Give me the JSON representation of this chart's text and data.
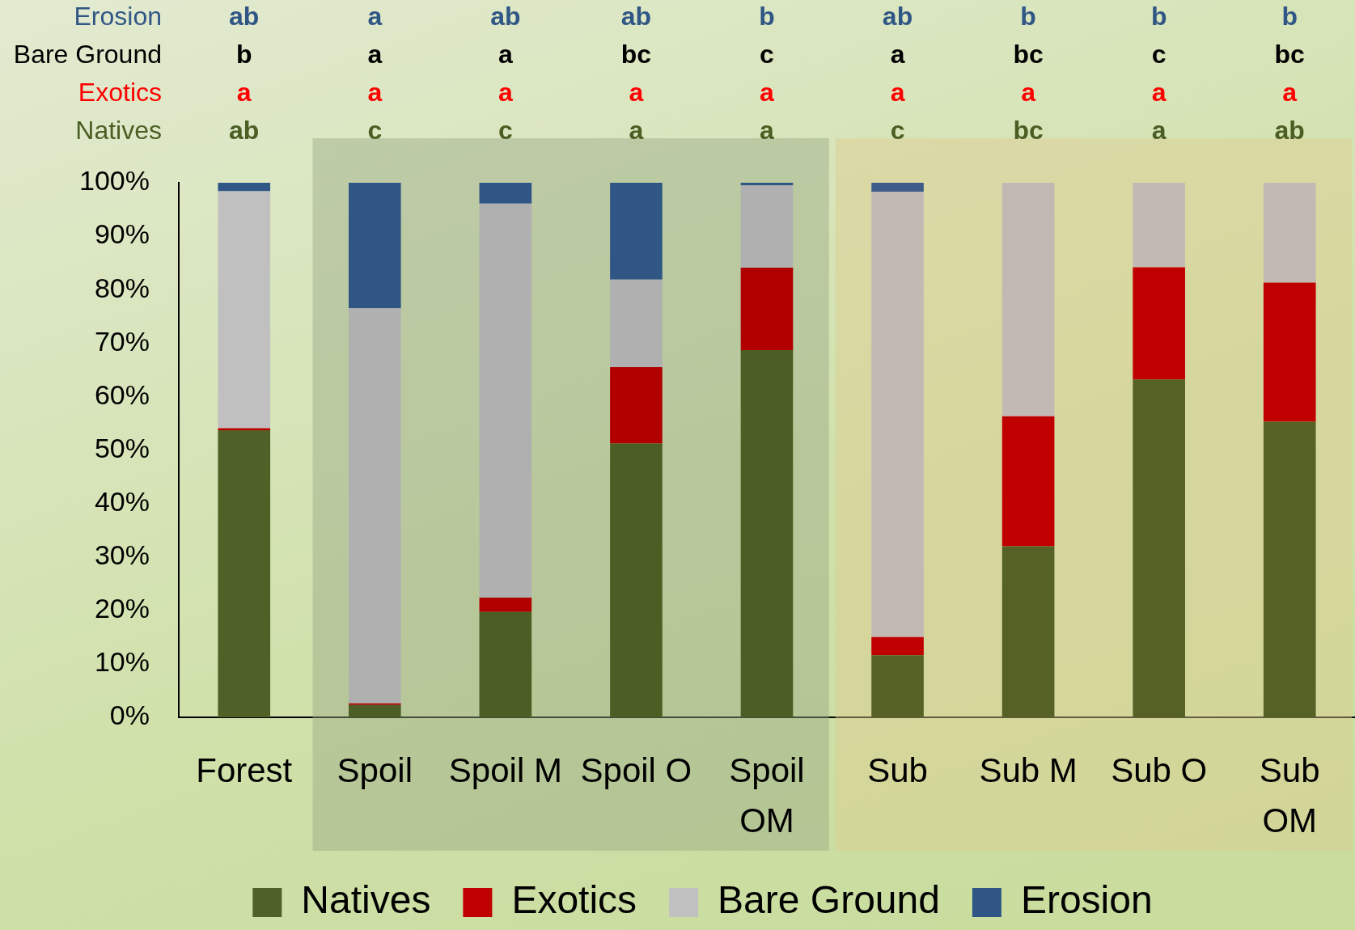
{
  "chart_data": {
    "type": "bar",
    "stacked": true,
    "categories": [
      "Forest",
      "Spoil",
      "Spoil M",
      "Spoil O",
      "Spoil OM",
      "Sub",
      "Sub M",
      "Sub O",
      "Sub OM"
    ],
    "series": [
      {
        "name": "Natives",
        "color": "#4b5e23",
        "colors": [
          "#4f6126",
          "#4b5e23",
          "#4b5e23",
          "#4b5e23",
          "#4b5e23",
          "#566125",
          "#566125",
          "#566125",
          "#566125"
        ],
        "values": [
          53.7,
          2.3,
          19.7,
          51.2,
          68.7,
          11.6,
          32.0,
          63.2,
          55.3
        ]
      },
      {
        "name": "Exotics",
        "color": "#c00000",
        "colors": [
          "#c00000",
          "#b00000",
          "#b00000",
          "#b00000",
          "#b00000",
          "#c00000",
          "#c00000",
          "#c00000",
          "#c00000"
        ],
        "values": [
          0.4,
          0.3,
          2.7,
          14.3,
          15.4,
          3.4,
          24.3,
          21.0,
          26.0
        ]
      },
      {
        "name": "Bare Ground",
        "color": "#c0c0c0",
        "colors": [
          "#c0c0c0",
          "#b0b0b0",
          "#b0b0b0",
          "#b0b0b0",
          "#b0b0b0",
          "#c3b9b4",
          "#c3b9b4",
          "#c3b9b4",
          "#c3b9b4"
        ],
        "values": [
          44.3,
          73.9,
          73.7,
          16.4,
          15.4,
          83.3,
          43.7,
          15.8,
          18.7
        ]
      },
      {
        "name": "Erosion",
        "color": "#305685",
        "colors": [
          "#305685",
          "#305685",
          "#305685",
          "#305685",
          "#305685",
          "#3d5c8a",
          "#3d5c8a",
          "#3d5c8a",
          "#3d5c8a"
        ],
        "values": [
          1.6,
          23.5,
          3.9,
          18.1,
          0.5,
          1.7,
          0,
          0,
          0
        ]
      }
    ],
    "annotations": [
      "ab",
      "a",
      "ab",
      "ab",
      "b",
      "ab",
      "b",
      "b",
      "b",
      "b",
      "a",
      "a",
      "bc",
      "c",
      "a",
      "bc",
      "c",
      "bc",
      "a",
      "a",
      "a",
      "a",
      "a",
      "a",
      "a",
      "a",
      "a",
      "ab",
      "c",
      "c",
      "a",
      "a",
      "c",
      "bc",
      "a",
      "ab"
    ],
    "bands": [
      {
        "axis": "x",
        "from": "Spoil",
        "to": "Spoil OM",
        "color": "#98a884"
      },
      {
        "axis": "x",
        "from": "Sub",
        "to": "Sub OM",
        "color": "#ddcc90"
      }
    ],
    "ylim": [
      0,
      100
    ],
    "yticks": [
      {
        "value": 0,
        "label": "0%"
      },
      {
        "value": 10,
        "label": "10%"
      },
      {
        "value": 20,
        "label": "20%"
      },
      {
        "value": 30,
        "label": "30%"
      },
      {
        "value": 40,
        "label": "40%"
      },
      {
        "value": 50,
        "label": "50%"
      },
      {
        "value": 60,
        "label": "60%"
      },
      {
        "value": 70,
        "label": "70%"
      },
      {
        "value": 80,
        "label": "80%"
      },
      {
        "value": 90,
        "label": "90%"
      },
      {
        "value": 100,
        "label": "100%"
      }
    ],
    "grid": false,
    "legend": "bottom"
  }
}
